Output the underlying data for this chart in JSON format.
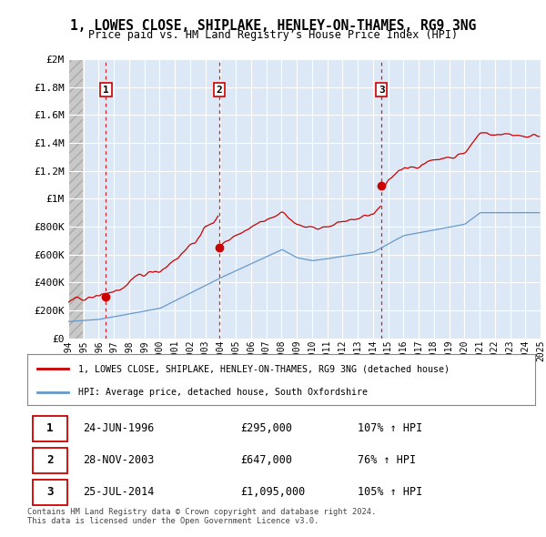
{
  "title": "1, LOWES CLOSE, SHIPLAKE, HENLEY-ON-THAMES, RG9 3NG",
  "subtitle": "Price paid vs. HM Land Registry’s House Price Index (HPI)",
  "sale_years": [
    1996.47,
    2003.91,
    2014.56
  ],
  "sale_prices": [
    295000,
    647000,
    1095000
  ],
  "sale_labels": [
    "1",
    "2",
    "3"
  ],
  "ylim": [
    0,
    2000000
  ],
  "yticks": [
    0,
    200000,
    400000,
    600000,
    800000,
    1000000,
    1200000,
    1400000,
    1600000,
    1800000,
    2000000
  ],
  "ytick_labels": [
    "£0",
    "£200K",
    "£400K",
    "£600K",
    "£800K",
    "£1M",
    "£1.2M",
    "£1.4M",
    "£1.6M",
    "£1.8M",
    "£2M"
  ],
  "xticks": [
    1994,
    1995,
    1996,
    1997,
    1998,
    1999,
    2000,
    2001,
    2002,
    2003,
    2004,
    2005,
    2006,
    2007,
    2008,
    2009,
    2010,
    2011,
    2012,
    2013,
    2014,
    2015,
    2016,
    2017,
    2018,
    2019,
    2020,
    2021,
    2022,
    2023,
    2024,
    2025
  ],
  "legend_property_label": "1, LOWES CLOSE, SHIPLAKE, HENLEY-ON-THAMES, RG9 3NG (detached house)",
  "legend_hpi_label": "HPI: Average price, detached house, South Oxfordshire",
  "sale_info": [
    {
      "num": "1",
      "date": "24-JUN-1996",
      "price": "£295,000",
      "hpi": "107% ↑ HPI"
    },
    {
      "num": "2",
      "date": "28-NOV-2003",
      "price": "£647,000",
      "hpi": "76% ↑ HPI"
    },
    {
      "num": "3",
      "date": "25-JUL-2014",
      "price": "£1,095,000",
      "hpi": "105% ↑ HPI"
    }
  ],
  "footnote": "Contains HM Land Registry data © Crown copyright and database right 2024.\nThis data is licensed under the Open Government Licence v3.0.",
  "property_line_color": "#cc0000",
  "hpi_line_color": "#6699cc",
  "dashed_vline_color": "#cc0000",
  "sale_marker_color": "#cc0000",
  "grid_color": "#c8d8e8",
  "label_box_color": "#cc0000",
  "plot_bg_color": "#dce8f5",
  "hatch_color": "#bbbbbb"
}
